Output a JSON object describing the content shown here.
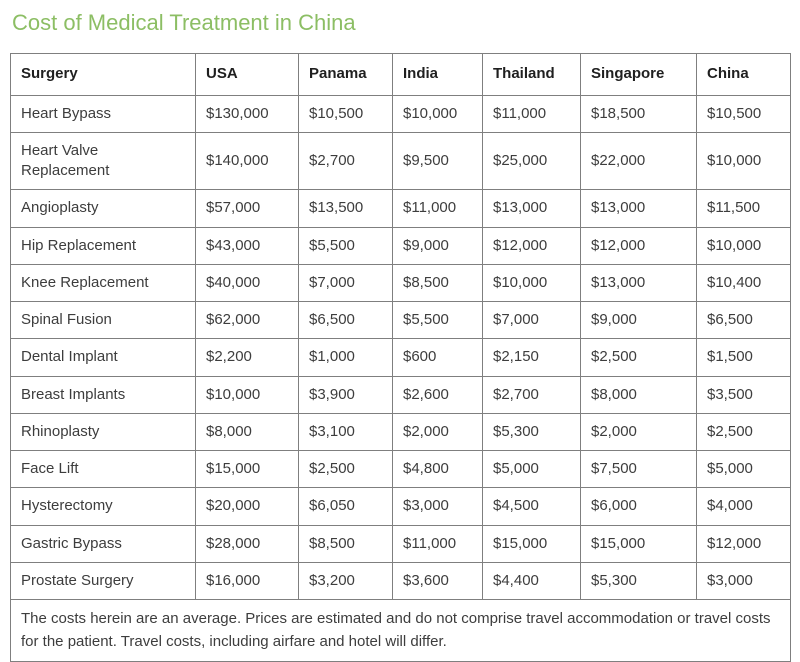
{
  "page": {
    "title": "Cost of Medical Treatment in China"
  },
  "colors": {
    "title_green": "#8cbe64",
    "border_gray": "#7f7f7f",
    "body_text": "#3d3d3d"
  },
  "table": {
    "columns": [
      "Surgery",
      "USA",
      "Panama",
      "India",
      "Thailand",
      "Singapore",
      "China"
    ],
    "rows": [
      {
        "surgery": "Heart Bypass",
        "values": [
          "$130,000",
          "$10,500",
          "$10,000",
          "$11,000",
          "$18,500",
          "$10,500"
        ]
      },
      {
        "surgery": "Heart Valve Replacement",
        "values": [
          "$140,000",
          "$2,700",
          "$9,500",
          "$25,000",
          "$22,000",
          "$10,000"
        ]
      },
      {
        "surgery": "Angioplasty",
        "values": [
          "$57,000",
          "$13,500",
          "$11,000",
          "$13,000",
          "$13,000",
          "$11,500"
        ]
      },
      {
        "surgery": "Hip Replacement",
        "values": [
          "$43,000",
          "$5,500",
          "$9,000",
          "$12,000",
          "$12,000",
          "$10,000"
        ]
      },
      {
        "surgery": "Knee Replacement",
        "values": [
          "$40,000",
          "$7,000",
          "$8,500",
          "$10,000",
          "$13,000",
          "$10,400"
        ]
      },
      {
        "surgery": "Spinal Fusion",
        "values": [
          "$62,000",
          "$6,500",
          "$5,500",
          "$7,000",
          "$9,000",
          "$6,500"
        ]
      },
      {
        "surgery": "Dental Implant",
        "values": [
          "$2,200",
          "$1,000",
          "$600",
          "$2,150",
          "$2,500",
          "$1,500"
        ]
      },
      {
        "surgery": "Breast Implants",
        "values": [
          "$10,000",
          "$3,900",
          "$2,600",
          "$2,700",
          "$8,000",
          "$3,500"
        ]
      },
      {
        "surgery": "Rhinoplasty",
        "values": [
          "$8,000",
          "$3,100",
          "$2,000",
          "$5,300",
          "$2,000",
          "$2,500"
        ]
      },
      {
        "surgery": "Face Lift",
        "values": [
          "$15,000",
          "$2,500",
          "$4,800",
          "$5,000",
          "$7,500",
          "$5,000"
        ]
      },
      {
        "surgery": "Hysterectomy",
        "values": [
          "$20,000",
          "$6,050",
          "$3,000",
          "$4,500",
          "$6,000",
          "$4,000"
        ]
      },
      {
        "surgery": "Gastric Bypass",
        "values": [
          "$28,000",
          "$8,500",
          "$11,000",
          "$15,000",
          "$15,000",
          "$12,000"
        ]
      },
      {
        "surgery": "Prostate Surgery",
        "values": [
          "$16,000",
          "$3,200",
          "$3,600",
          "$4,400",
          "$5,300",
          "$3,000"
        ]
      }
    ],
    "footnote": "The costs herein are an average. Prices are estimated and do not comprise travel accommodation or travel costs for the patient. Travel costs, including airfare and hotel will differ."
  }
}
